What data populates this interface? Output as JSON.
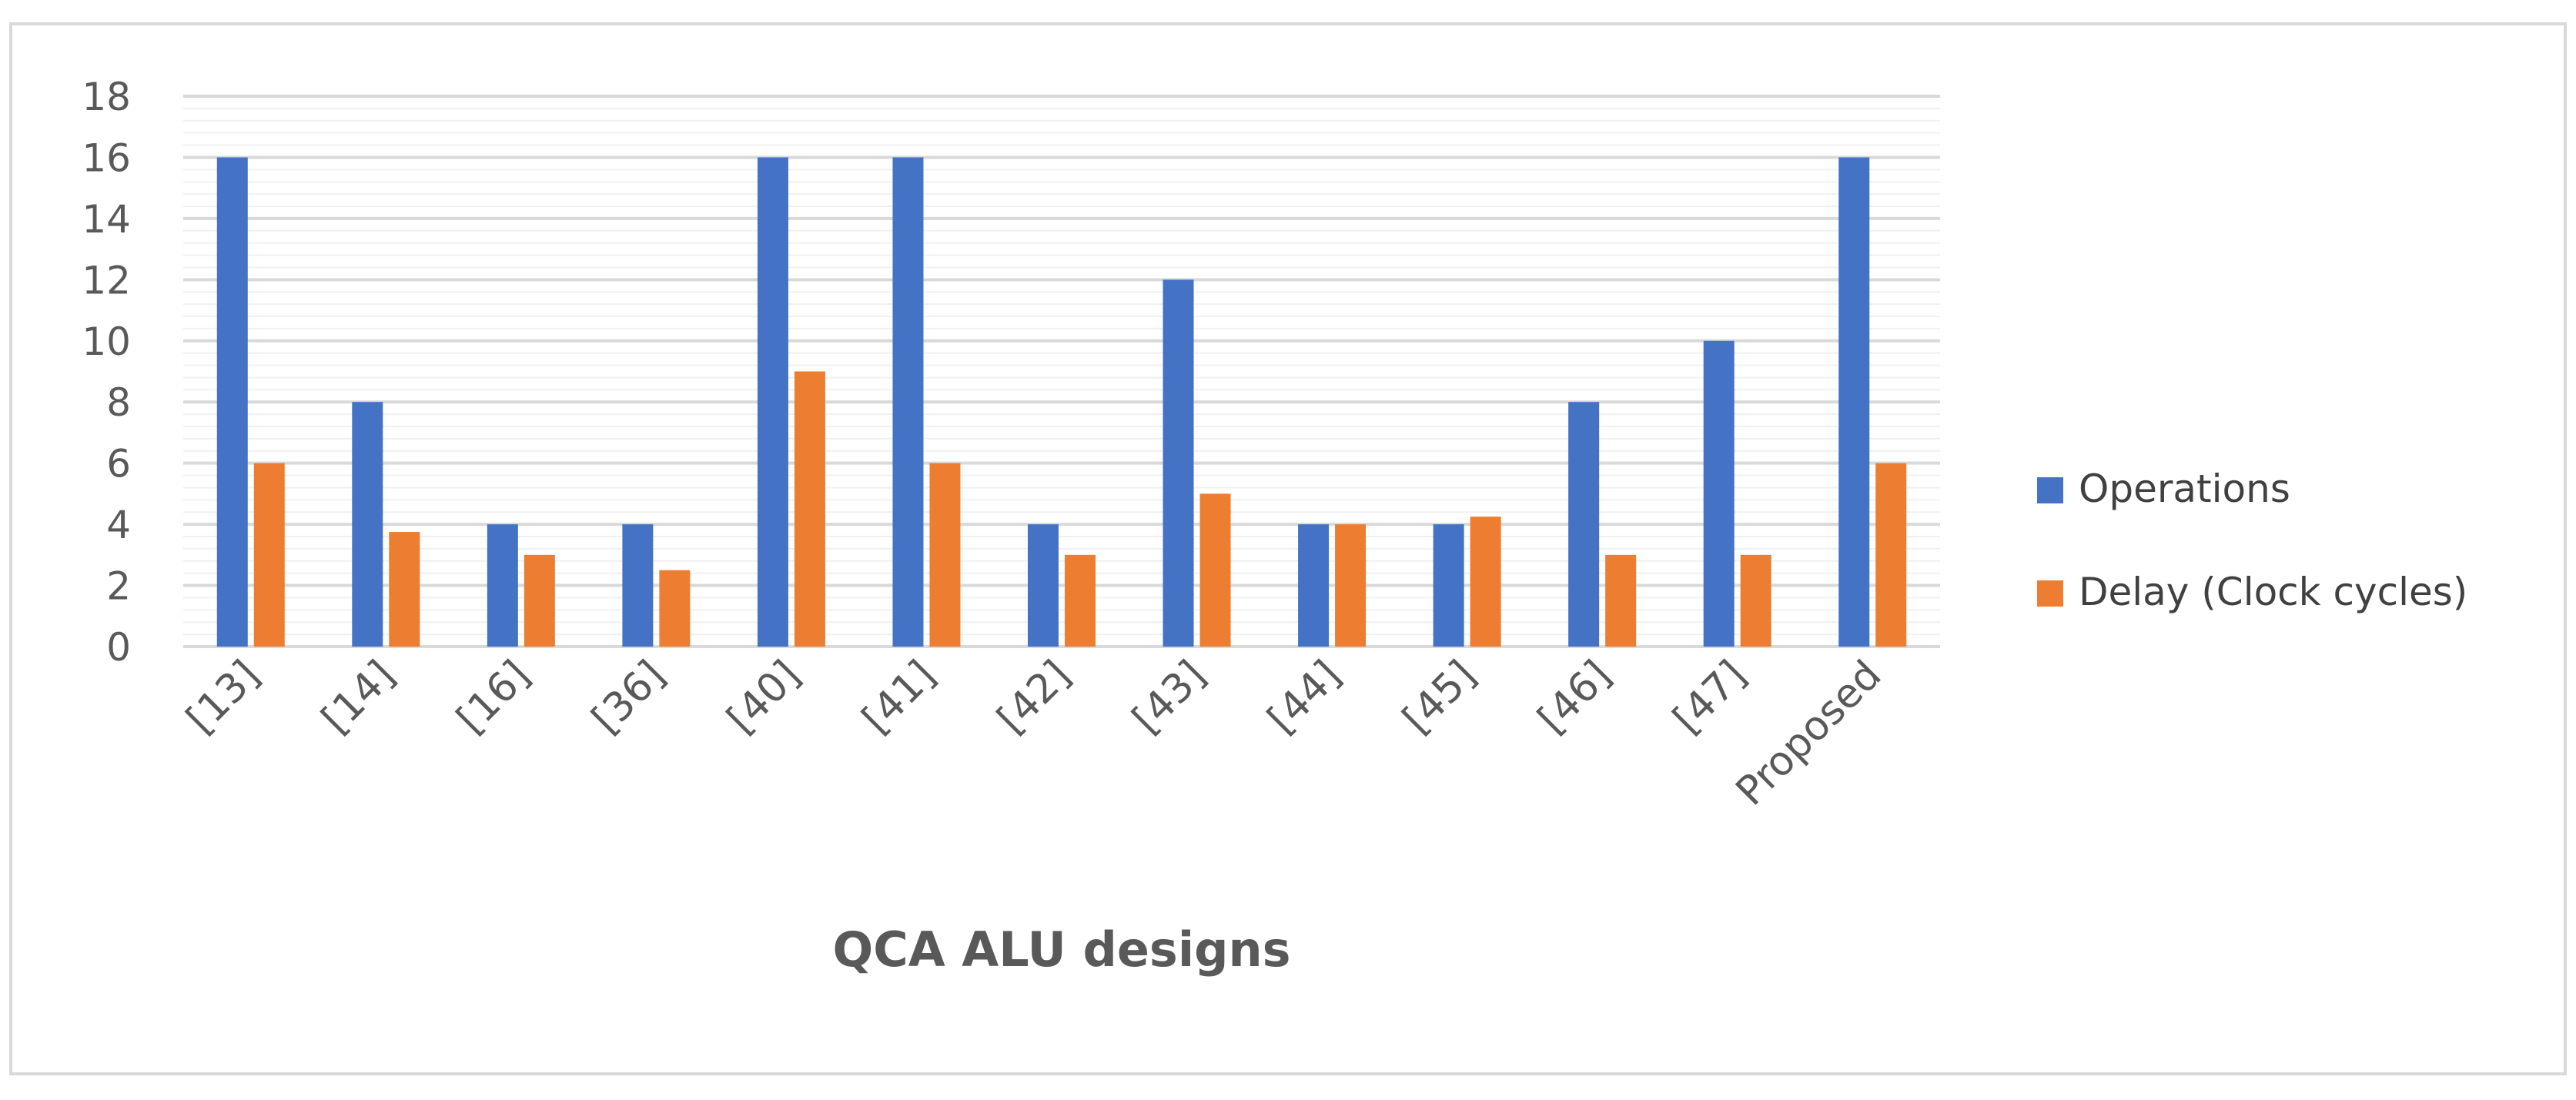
{
  "chart_data": {
    "type": "bar",
    "title": "",
    "xlabel": "QCA ALU designs",
    "ylabel": "",
    "categories": [
      "[13]",
      "[14]",
      "[16]",
      "[36]",
      "[40]",
      "[41]",
      "[42]",
      "[43]",
      "[44]",
      "[45]",
      "[46]",
      "[47]",
      "Proposed"
    ],
    "series": [
      {
        "name": "Operations",
        "color": "#4472C4",
        "values": [
          16,
          8,
          4,
          4,
          16,
          16,
          4,
          12,
          4,
          4,
          8,
          10,
          16
        ]
      },
      {
        "name": "Delay (Clock cycles)",
        "color": "#ED7D31",
        "values": [
          6,
          3.75,
          3,
          2.5,
          9,
          6,
          3,
          5,
          4,
          4.25,
          3,
          3,
          6
        ]
      }
    ],
    "ylim": [
      0,
      18
    ],
    "yticks": [
      0,
      2,
      4,
      6,
      8,
      10,
      12,
      14,
      16,
      18
    ],
    "grid": true,
    "legend_position": "right"
  }
}
